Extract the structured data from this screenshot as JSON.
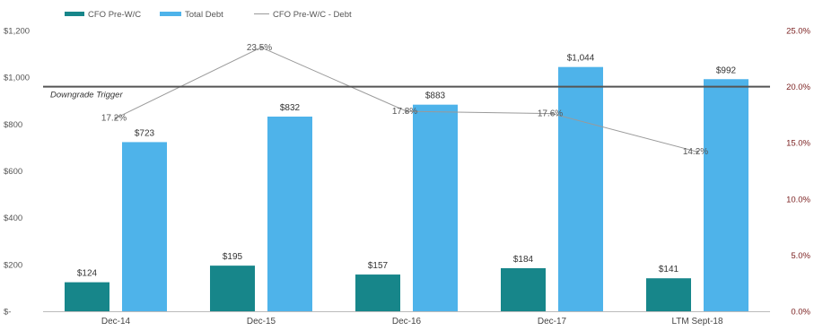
{
  "chart_data": {
    "type": "bar",
    "title": "",
    "categories": [
      "Dec-14",
      "Dec-15",
      "Dec-16",
      "Dec-17",
      "LTM Sept-18"
    ],
    "series": [
      {
        "name": "CFO Pre-W/C",
        "kind": "bar",
        "axis": "left",
        "color": "#17868a",
        "values": [
          124,
          195,
          157,
          184,
          141
        ],
        "labels": [
          "$124",
          "$195",
          "$157",
          "$184",
          "$141"
        ]
      },
      {
        "name": "Total Debt",
        "kind": "bar",
        "axis": "left",
        "color": "#4eb3ea",
        "values": [
          723,
          832,
          883,
          1044,
          992
        ],
        "labels": [
          "$723",
          "$832",
          "$883",
          "$1,044",
          "$992"
        ]
      },
      {
        "name": "CFO Pre-W/C - Debt",
        "kind": "line",
        "axis": "right",
        "color": "#9a9a9a",
        "values": [
          17.2,
          23.5,
          17.8,
          17.6,
          14.2
        ],
        "labels": [
          "17.2%",
          "23.5%",
          "17.8%",
          "17.6%",
          "14.2%"
        ]
      }
    ],
    "left_axis": {
      "ylim": [
        0,
        1200
      ],
      "ticks": [
        0,
        200,
        400,
        600,
        800,
        1000,
        1200
      ],
      "tick_labels": [
        "$-",
        "$200",
        "$400",
        "$600",
        "$800",
        "$1,000",
        "$1,200"
      ]
    },
    "right_axis": {
      "ylim": [
        0,
        25
      ],
      "ticks": [
        0,
        5,
        10,
        15,
        20,
        25
      ],
      "tick_labels": [
        "0.0%",
        "5.0%",
        "10.0%",
        "15.0%",
        "20.0%",
        "25.0%"
      ],
      "color": "#7a1f1f"
    },
    "reference_line": {
      "label": "Downgrade Trigger",
      "value": 20,
      "axis": "right",
      "color": "#555555"
    },
    "legend": {
      "placement": "top-left"
    },
    "grid": false
  }
}
